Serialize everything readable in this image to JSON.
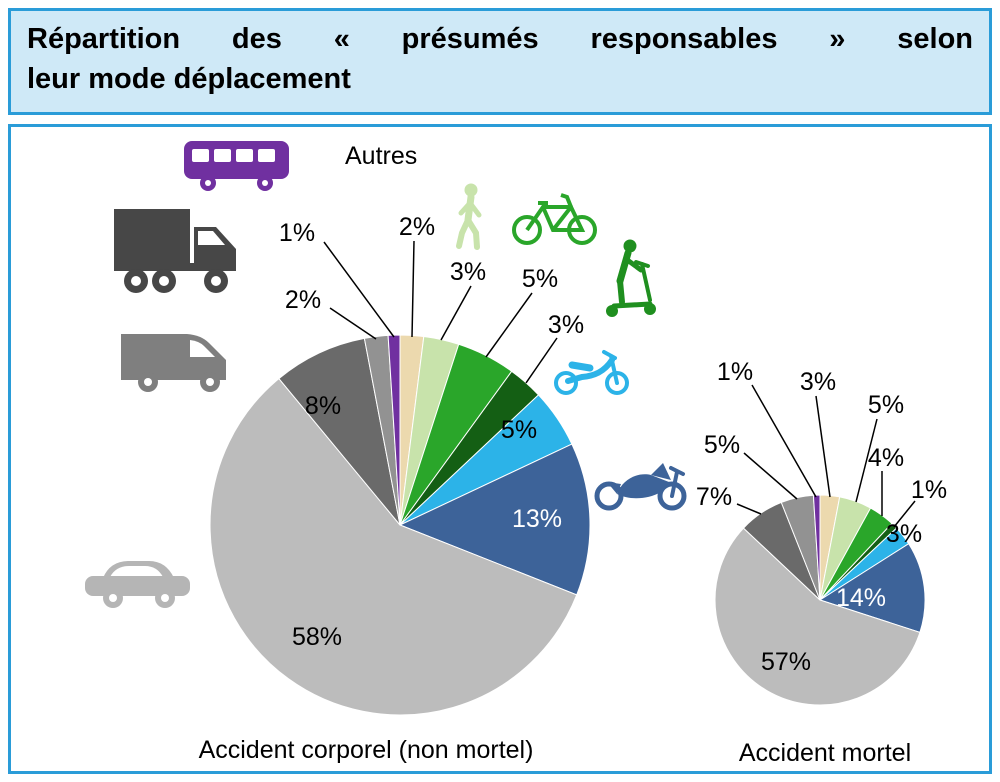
{
  "title": {
    "line1": "Répartition des « présumés responsables » selon",
    "line2": "leur mode déplacement"
  },
  "theme": {
    "frame_border": "#2a9cd8",
    "title_bg": "#cfe9f7"
  },
  "icons": {
    "bus": "#7030a0",
    "truck": "#474747",
    "van": "#7f7f7f",
    "car": "#b5b5b5",
    "pedestrian": "#c8e3ab",
    "bicycle": "#2aa62a",
    "kick-scooter": "#1f8f1f",
    "moped": "#2cb3e8",
    "motorcycle": "#3d6399"
  },
  "chart_data": [
    {
      "type": "pie",
      "title": "Accident corporel (non mortel)",
      "unit": "%",
      "start_angle_deg": 0,
      "direction": "clockwise",
      "slices": [
        {
          "category": "autres",
          "label": "Autres",
          "value": 2,
          "color": "#ecd9ae"
        },
        {
          "category": "pedestrian",
          "value": 3,
          "color": "#c8e3ab"
        },
        {
          "category": "bicycle",
          "value": 5,
          "color": "#2aa62a"
        },
        {
          "category": "kick-scooter",
          "value": 3,
          "color": "#145f14"
        },
        {
          "category": "moped",
          "value": 5,
          "color": "#2cb3e8"
        },
        {
          "category": "motorcycle",
          "value": 13,
          "color": "#3d6399"
        },
        {
          "category": "car",
          "value": 58,
          "color": "#bcbcbc"
        },
        {
          "category": "truck",
          "value": 8,
          "color": "#6a6a6a"
        },
        {
          "category": "van",
          "value": 2,
          "color": "#929292"
        },
        {
          "category": "bus",
          "value": 1,
          "color": "#7030a0"
        }
      ]
    },
    {
      "type": "pie",
      "title": "Accident mortel",
      "unit": "%",
      "start_angle_deg": 0,
      "direction": "clockwise",
      "slices": [
        {
          "category": "autres",
          "value": 3,
          "color": "#ecd9ae"
        },
        {
          "category": "pedestrian",
          "value": 5,
          "color": "#c8e3ab"
        },
        {
          "category": "bicycle",
          "value": 4,
          "color": "#2aa62a"
        },
        {
          "category": "kick-scooter",
          "value": 1,
          "color": "#145f14"
        },
        {
          "category": "moped",
          "value": 3,
          "color": "#2cb3e8"
        },
        {
          "category": "motorcycle",
          "value": 14,
          "color": "#3d6399"
        },
        {
          "category": "car",
          "value": 57,
          "color": "#bcbcbc"
        },
        {
          "category": "truck",
          "value": 7,
          "color": "#6a6a6a"
        },
        {
          "category": "van",
          "value": 5,
          "color": "#929292"
        },
        {
          "category": "bus",
          "value": 1,
          "color": "#7030a0"
        }
      ]
    }
  ]
}
